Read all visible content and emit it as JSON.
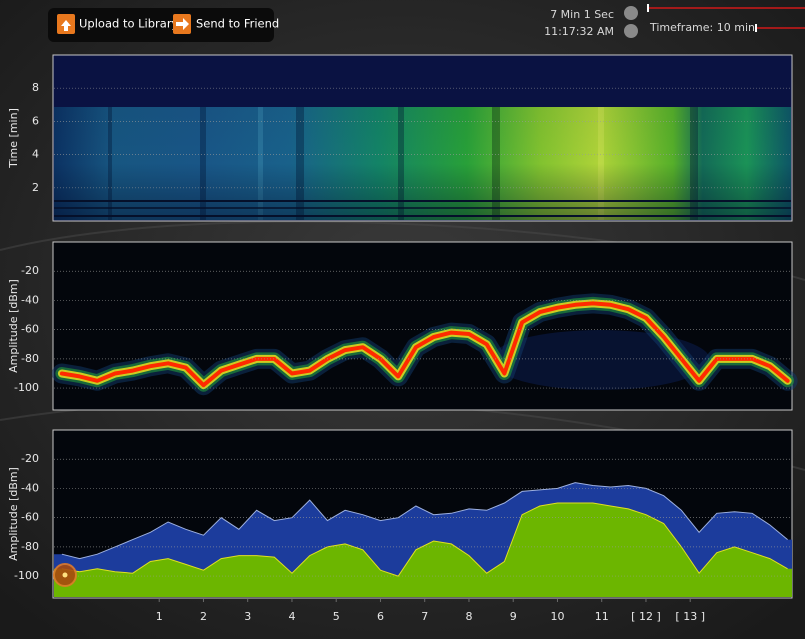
{
  "toolbar": {
    "buttons": [
      "Upload to Library",
      "Send to Friend"
    ]
  },
  "status": {
    "elapsed": "7 Min 1 Sec",
    "time": "11:17:32 AM",
    "timeframe": "Timeframe: 10 min"
  },
  "chart_data": [
    {
      "type": "heatmap",
      "y_label": "Time [min]",
      "xlim": [
        -1.4,
        15.3
      ],
      "ylim": [
        0,
        10
      ],
      "yticks": [
        2,
        4,
        6,
        8
      ],
      "grid": true
    },
    {
      "type": "density",
      "y_label": "Amplitude [dBm]",
      "xlim": [
        -1.4,
        15.3
      ],
      "ylim": [
        -115,
        0
      ],
      "yticks": [
        -20,
        -40,
        -60,
        -80,
        -100
      ],
      "grid": true,
      "x": [
        -1.2,
        -0.8,
        -0.4,
        0,
        0.4,
        0.8,
        1.2,
        1.6,
        2.0,
        2.4,
        2.8,
        3.2,
        3.6,
        4.0,
        4.4,
        4.8,
        5.2,
        5.6,
        6.0,
        6.4,
        6.8,
        7.2,
        7.6,
        8.0,
        8.4,
        8.8,
        9.2,
        9.6,
        10.0,
        10.4,
        10.8,
        11.2,
        11.6,
        12.0,
        12.4,
        12.8,
        13.2,
        13.6,
        14.0,
        14.4,
        14.8,
        15.2
      ],
      "series": [
        {
          "color": "#ff2a00",
          "values": [
            -90,
            -92,
            -95,
            -90,
            -88,
            -85,
            -83,
            -86,
            -98,
            -88,
            -84,
            -80,
            -80,
            -90,
            -88,
            -80,
            -74,
            -72,
            -80,
            -92,
            -72,
            -65,
            -62,
            -63,
            -70,
            -90,
            -55,
            -48,
            -45,
            -43,
            -42,
            -43,
            -46,
            -52,
            -65,
            -80,
            -95,
            -80,
            -80,
            -80,
            -85,
            -95
          ]
        }
      ]
    },
    {
      "type": "area",
      "y_label": "Amplitude [dBm]",
      "xlim": [
        -1.4,
        15.3
      ],
      "ylim": [
        -115,
        0
      ],
      "yticks": [
        -20,
        -40,
        -60,
        -80,
        -100
      ],
      "xticks": [
        1,
        2,
        3,
        4,
        5,
        6,
        7,
        8,
        9,
        10,
        11,
        {
          "value": 12,
          "label": "[ 12 ]"
        },
        {
          "value": 13,
          "label": "[ 13 ]"
        }
      ],
      "grid": true,
      "x": [
        -1.2,
        -0.8,
        -0.4,
        0,
        0.4,
        0.8,
        1.2,
        1.6,
        2.0,
        2.4,
        2.8,
        3.2,
        3.6,
        4.0,
        4.4,
        4.8,
        5.2,
        5.6,
        6.0,
        6.4,
        6.8,
        7.2,
        7.6,
        8.0,
        8.4,
        8.8,
        9.2,
        9.6,
        10.0,
        10.4,
        10.8,
        11.2,
        11.6,
        12.0,
        12.4,
        12.8,
        13.2,
        13.6,
        14.0,
        14.4,
        14.8,
        15.2
      ],
      "series": [
        {
          "color": "#1c3c9c",
          "edge": "#9db0e0",
          "values": [
            -85,
            -88,
            -85,
            -80,
            -75,
            -70,
            -63,
            -68,
            -72,
            -60,
            -68,
            -55,
            -62,
            -60,
            -48,
            -62,
            -55,
            -58,
            -62,
            -60,
            -52,
            -58,
            -57,
            -54,
            -55,
            -50,
            -42,
            -41,
            -40,
            -36,
            -38,
            -39,
            -38,
            -40,
            -45,
            -55,
            -70,
            -57,
            -56,
            -57,
            -65,
            -75
          ]
        },
        {
          "color": "#6cb600",
          "edge": "#e0e020",
          "values": [
            -95,
            -97,
            -95,
            -97,
            -98,
            -90,
            -88,
            -92,
            -96,
            -88,
            -86,
            -86,
            -87,
            -98,
            -86,
            -80,
            -78,
            -82,
            -96,
            -100,
            -82,
            -76,
            -78,
            -86,
            -98,
            -90,
            -58,
            -52,
            -50,
            -50,
            -50,
            -52,
            -54,
            -58,
            -64,
            -80,
            -98,
            -84,
            -80,
            -84,
            -88,
            -95
          ]
        }
      ]
    }
  ]
}
